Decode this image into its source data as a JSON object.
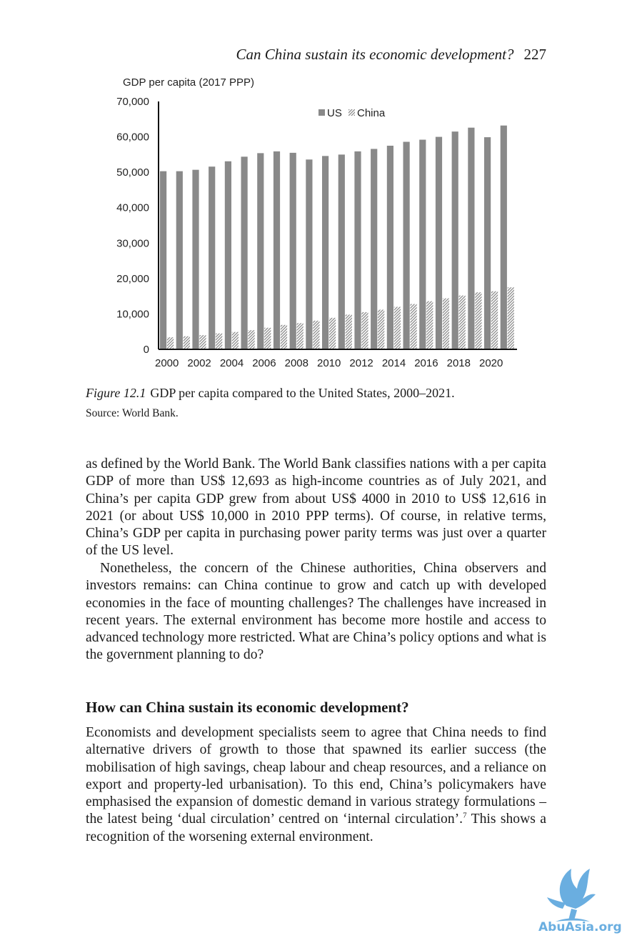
{
  "header": {
    "running_title": "Can China sustain its economic development?",
    "page_number": "227"
  },
  "chart_data": {
    "type": "bar",
    "ylabel": "GDP per capita (2017 PPP)",
    "xlabel": "",
    "ylim": [
      0,
      70000
    ],
    "y_ticks": [
      "0",
      "10,000",
      "20,000",
      "30,000",
      "40,000",
      "50,000",
      "60,000",
      "70,000"
    ],
    "categories": [
      "2000",
      "2001",
      "2002",
      "2003",
      "2004",
      "2005",
      "2006",
      "2007",
      "2008",
      "2009",
      "2010",
      "2011",
      "2012",
      "2013",
      "2014",
      "2015",
      "2016",
      "2017",
      "2018",
      "2019",
      "2020",
      "2021"
    ],
    "x_tick_labels": [
      "2000",
      "2002",
      "2004",
      "2006",
      "2008",
      "2010",
      "2012",
      "2014",
      "2016",
      "2018",
      "2020"
    ],
    "legend_position": "top-center",
    "series": [
      {
        "name": "US",
        "color": "#898989",
        "pattern": "solid",
        "values": [
          50300,
          50300,
          50700,
          51600,
          53100,
          54400,
          55400,
          55900,
          55500,
          53600,
          54600,
          55000,
          55900,
          56600,
          57500,
          58600,
          59200,
          60000,
          61500,
          62600,
          59900,
          63200
        ]
      },
      {
        "name": "China",
        "color": "#9a9a9a",
        "pattern": "diagonal-hatch",
        "values": [
          3400,
          3700,
          4000,
          4500,
          4900,
          5400,
          6100,
          6900,
          7400,
          8100,
          8900,
          9800,
          10500,
          11200,
          12000,
          12800,
          13600,
          14400,
          15200,
          16100,
          16400,
          17500
        ]
      }
    ]
  },
  "figure": {
    "label": "Figure 12.1",
    "caption": "GDP per capita compared to the United States, 2000–2021.",
    "source": "Source: World Bank."
  },
  "body": {
    "para1": "as defined by the World Bank. The World Bank classifies nations with a per capita GDP of more than US$ 12,693 as high-income countries as of July 2021, and China’s per capita GDP grew from about US$ 4000 in 2010 to US$ 12,616 in 2021 (or about US$ 10,000 in 2010 PPP terms). Of course, in relative terms, China’s GDP per capita in purchasing power parity terms was just over a quarter of the US level.",
    "para2": "Nonetheless, the concern of the Chinese authorities, China observers and investors remains: can China continue to grow and catch up with developed economies in the face of mounting challenges? The challenges have increased in recent years. The external environment has become more hostile and access to advanced technology more restricted. What are China’s policy options and what is the government planning to do?",
    "section_heading": "How can China sustain its economic development?",
    "para3_main": "Economists and development specialists seem to agree that China needs to find alternative drivers of growth to those that spawned its earlier success (the mobilisation of high savings, cheap labour and cheap resources, and a reliance on export and property-led urbanisation). To this end, China’s policymakers have emphasised the expansion of domestic demand in various strategy formulations – the latest being ‘dual circulation’ centred on ‘internal circulation’.",
    "para3_footnote": "7",
    "para3_end": " This shows a recognition of the worsening external environment."
  },
  "watermark": {
    "text": "AbuAsia.org",
    "color": "#6aaee0"
  }
}
